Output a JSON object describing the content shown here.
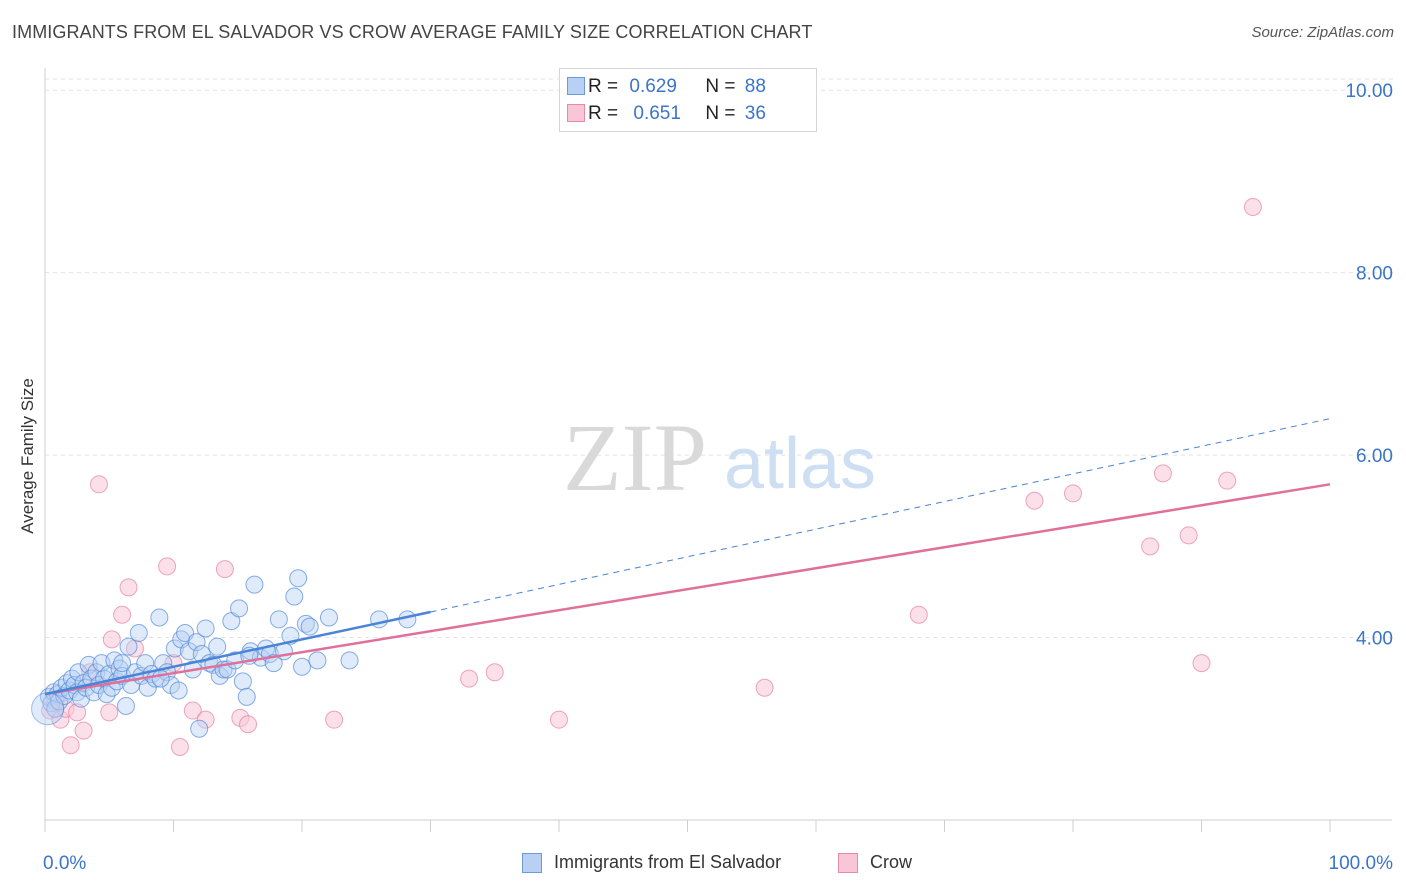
{
  "title": "IMMIGRANTS FROM EL SALVADOR VS CROW AVERAGE FAMILY SIZE CORRELATION CHART",
  "source": "Source: ZipAtlas.com",
  "watermark": {
    "zip": "ZIP",
    "atlas": "atlas"
  },
  "legend": [
    {
      "r_label": "R = ",
      "r_value": "0.629",
      "n_label": "N = ",
      "n_value": "88"
    },
    {
      "r_label": "R = ",
      "r_value": "0.651",
      "n_label": "N = ",
      "n_value": "36"
    }
  ],
  "bottom_legend": [
    "Immigrants from El Salvador",
    "Crow"
  ],
  "colors": {
    "blue": "#4a84d6",
    "blue_fill": "#b7d0f3",
    "pink": "#e0709a",
    "pink_fill": "#f9c6d7",
    "tick_label": "#3b74c9"
  },
  "chart_data": {
    "type": "scatter",
    "title": "IMMIGRANTS FROM EL SALVADOR VS CROW AVERAGE FAMILY SIZE CORRELATION CHART",
    "xlabel": "",
    "ylabel": "Average Family Size",
    "xlim": [
      0,
      100
    ],
    "ylim": [
      2.0,
      10.2
    ],
    "x_tick_labels": [
      "0.0%",
      "100.0%"
    ],
    "y_ticks": [
      4.0,
      6.0,
      8.0,
      10.0
    ],
    "y_tick_labels": [
      "4.00",
      "6.00",
      "8.00",
      "10.00"
    ],
    "series": [
      {
        "name": "Immigrants from El Salvador",
        "r": 0.629,
        "n": 88,
        "trend": {
          "x0": 0,
          "y0": 3.38,
          "x1": 30,
          "y1": 4.28,
          "dashed_to_x": 100,
          "dashed_to_y": 6.4
        },
        "points": [
          [
            0.3,
            3.35
          ],
          [
            0.5,
            3.28
          ],
          [
            0.7,
            3.4
          ],
          [
            0.8,
            3.22
          ],
          [
            1.0,
            3.38
          ],
          [
            1.1,
            3.3
          ],
          [
            1.3,
            3.45
          ],
          [
            1.5,
            3.36
          ],
          [
            1.7,
            3.5
          ],
          [
            1.9,
            3.42
          ],
          [
            2.1,
            3.55
          ],
          [
            2.3,
            3.48
          ],
          [
            2.5,
            3.4
          ],
          [
            2.6,
            3.62
          ],
          [
            2.8,
            3.33
          ],
          [
            3.0,
            3.5
          ],
          [
            3.2,
            3.45
          ],
          [
            3.4,
            3.7
          ],
          [
            3.6,
            3.55
          ],
          [
            3.8,
            3.4
          ],
          [
            4.0,
            3.62
          ],
          [
            4.2,
            3.48
          ],
          [
            4.4,
            3.72
          ],
          [
            4.6,
            3.55
          ],
          [
            4.8,
            3.38
          ],
          [
            5.0,
            3.6
          ],
          [
            5.2,
            3.45
          ],
          [
            5.4,
            3.75
          ],
          [
            5.6,
            3.52
          ],
          [
            5.8,
            3.66
          ],
          [
            6.0,
            3.58
          ],
          [
            6.3,
            3.25
          ],
          [
            6.5,
            3.9
          ],
          [
            6.7,
            3.48
          ],
          [
            7.0,
            3.62
          ],
          [
            7.3,
            4.05
          ],
          [
            7.5,
            3.58
          ],
          [
            7.8,
            3.72
          ],
          [
            8.0,
            3.45
          ],
          [
            8.3,
            3.6
          ],
          [
            8.6,
            3.55
          ],
          [
            8.9,
            4.22
          ],
          [
            9.2,
            3.72
          ],
          [
            9.5,
            3.62
          ],
          [
            9.8,
            3.48
          ],
          [
            10.1,
            3.88
          ],
          [
            10.4,
            3.42
          ],
          [
            10.6,
            3.98
          ],
          [
            10.9,
            4.05
          ],
          [
            11.2,
            3.85
          ],
          [
            11.5,
            3.65
          ],
          [
            11.8,
            3.95
          ],
          [
            12.0,
            3.0
          ],
          [
            12.2,
            3.82
          ],
          [
            12.5,
            4.1
          ],
          [
            12.8,
            3.72
          ],
          [
            13.1,
            3.7
          ],
          [
            13.4,
            3.9
          ],
          [
            13.6,
            3.58
          ],
          [
            13.9,
            3.65
          ],
          [
            14.2,
            3.65
          ],
          [
            14.5,
            4.18
          ],
          [
            14.8,
            3.75
          ],
          [
            15.1,
            4.32
          ],
          [
            15.4,
            3.52
          ],
          [
            15.7,
            3.35
          ],
          [
            16.0,
            3.85
          ],
          [
            16.3,
            4.58
          ],
          [
            16.8,
            3.78
          ],
          [
            17.2,
            3.88
          ],
          [
            17.5,
            3.82
          ],
          [
            17.8,
            3.72
          ],
          [
            18.2,
            4.2
          ],
          [
            18.6,
            3.85
          ],
          [
            19.1,
            4.02
          ],
          [
            19.4,
            4.45
          ],
          [
            19.7,
            4.65
          ],
          [
            20.0,
            3.68
          ],
          [
            20.3,
            4.15
          ],
          [
            20.6,
            4.12
          ],
          [
            21.2,
            3.75
          ],
          [
            22.1,
            4.22
          ],
          [
            23.7,
            3.75
          ],
          [
            26.0,
            4.2
          ],
          [
            28.2,
            4.2
          ],
          [
            15.9,
            3.8
          ],
          [
            9.0,
            3.55
          ],
          [
            6.0,
            3.72
          ]
        ]
      },
      {
        "name": "Crow",
        "r": 0.651,
        "n": 36,
        "trend": {
          "x0": 0,
          "y0": 3.38,
          "x1": 100,
          "y1": 5.68
        },
        "points": [
          [
            0.4,
            3.2
          ],
          [
            1.2,
            3.1
          ],
          [
            1.6,
            3.22
          ],
          [
            2.0,
            2.82
          ],
          [
            2.5,
            3.18
          ],
          [
            3.0,
            2.98
          ],
          [
            3.5,
            3.62
          ],
          [
            4.2,
            5.68
          ],
          [
            5.0,
            3.18
          ],
          [
            5.2,
            3.98
          ],
          [
            6.0,
            4.25
          ],
          [
            6.5,
            4.55
          ],
          [
            7.0,
            3.88
          ],
          [
            9.5,
            4.78
          ],
          [
            10.0,
            3.72
          ],
          [
            10.5,
            2.8
          ],
          [
            11.5,
            3.2
          ],
          [
            12.5,
            3.1
          ],
          [
            14.0,
            4.75
          ],
          [
            15.2,
            3.12
          ],
          [
            15.8,
            3.05
          ],
          [
            22.5,
            3.1
          ],
          [
            33.0,
            3.55
          ],
          [
            35.0,
            3.62
          ],
          [
            40.0,
            3.1
          ],
          [
            56.0,
            3.45
          ],
          [
            68.0,
            4.25
          ],
          [
            77.0,
            5.5
          ],
          [
            80.0,
            5.58
          ],
          [
            86.0,
            5.0
          ],
          [
            87.0,
            5.8
          ],
          [
            89.0,
            5.12
          ],
          [
            90.0,
            3.72
          ],
          [
            92.0,
            5.72
          ],
          [
            94.0,
            8.72
          ],
          [
            0.8,
            3.3
          ]
        ]
      }
    ]
  }
}
